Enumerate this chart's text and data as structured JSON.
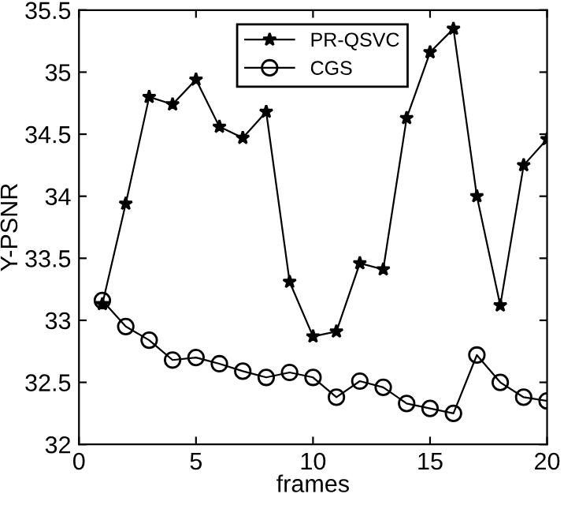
{
  "chart_data": {
    "type": "line",
    "xlabel": "frames",
    "ylabel": "Y-PSNR",
    "x": [
      1,
      2,
      3,
      4,
      5,
      6,
      7,
      8,
      9,
      10,
      11,
      12,
      13,
      14,
      15,
      16,
      17,
      18,
      19,
      20
    ],
    "series": [
      {
        "name": "PR-QSVC",
        "color": "#000000",
        "marker": "star",
        "values": [
          33.13,
          33.94,
          34.8,
          34.74,
          34.94,
          34.56,
          34.47,
          34.68,
          33.31,
          32.87,
          32.91,
          33.46,
          33.41,
          34.63,
          35.16,
          35.35,
          34.0,
          33.12,
          34.25,
          34.46
        ]
      },
      {
        "name": "CGS",
        "color": "#000000",
        "marker": "circle",
        "values": [
          33.16,
          32.95,
          32.84,
          32.68,
          32.7,
          32.65,
          32.59,
          32.54,
          32.58,
          32.54,
          32.38,
          32.51,
          32.46,
          32.33,
          32.29,
          32.25,
          32.72,
          32.5,
          32.38,
          32.35
        ]
      }
    ],
    "xlim": [
      0,
      20
    ],
    "xticks": [
      0,
      5,
      10,
      15,
      20
    ],
    "ylim": [
      32,
      35.5
    ],
    "yticks": [
      32,
      32.5,
      33,
      33.5,
      34,
      34.5,
      35,
      35.5
    ],
    "grid": false,
    "legend": "top",
    "line_style": "solid"
  }
}
